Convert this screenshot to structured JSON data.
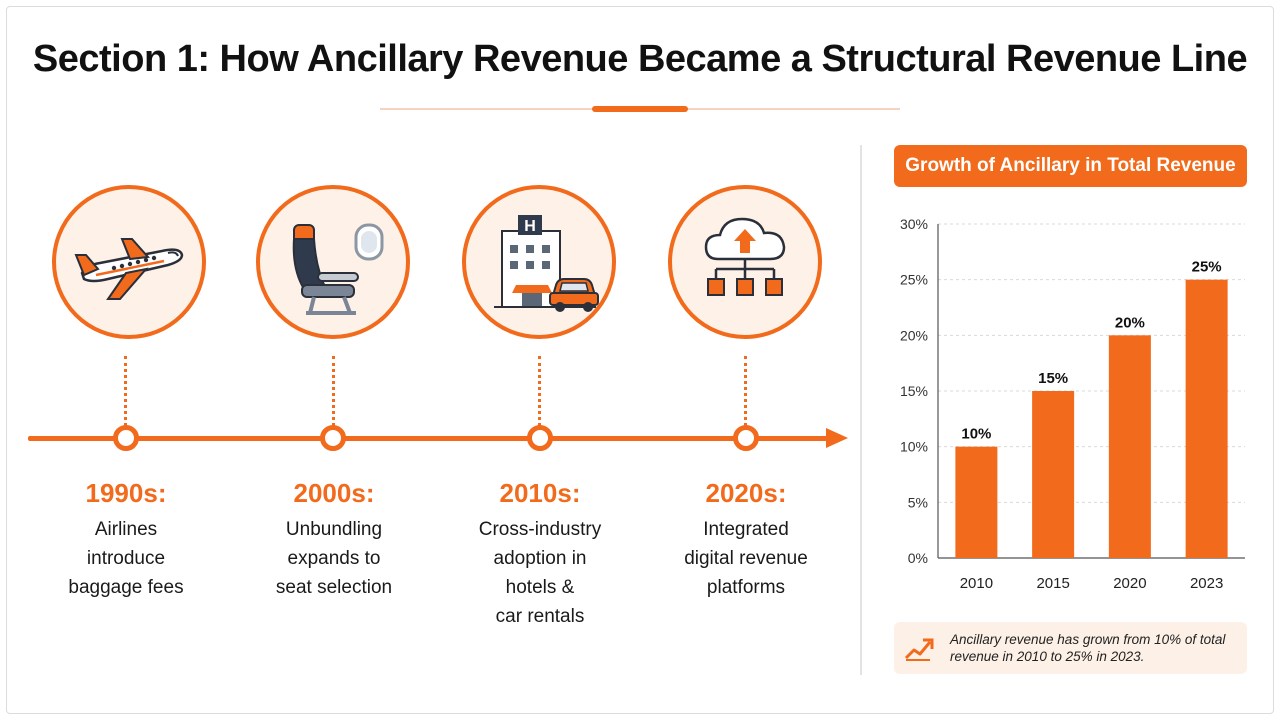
{
  "title": "Section 1: How Ancillary Revenue Became a Structural Revenue Line",
  "timeline": [
    {
      "year": "1990s:",
      "lines": [
        "Airlines",
        "introduce",
        "baggage fees"
      ],
      "icon": "airplane-icon"
    },
    {
      "year": "2000s:",
      "lines": [
        "Unbundling",
        "expands to",
        "seat selection"
      ],
      "icon": "airplane-seat-icon"
    },
    {
      "year": "2010s:",
      "lines": [
        "Cross-industry",
        "adoption in",
        "hotels &",
        "car rentals"
      ],
      "icon": "hotel-car-icon"
    },
    {
      "year": "2020s:",
      "lines": [
        "Integrated",
        "digital revenue",
        "platforms"
      ],
      "icon": "cloud-network-icon"
    }
  ],
  "hotel_sign": "H",
  "chart_data": {
    "type": "bar",
    "title": "Growth of Ancillary in Total Revenue",
    "categories": [
      "2010",
      "2015",
      "2020",
      "2023"
    ],
    "values": [
      10,
      15,
      20,
      25
    ],
    "data_labels": [
      "10%",
      "15%",
      "20%",
      "25%"
    ],
    "y_ticks": [
      "0%",
      "5%",
      "10%",
      "15%",
      "20%",
      "25%",
      "30%"
    ],
    "ylim": [
      0,
      30
    ],
    "grid": "horizontal dashed",
    "bar_color": "#f26a1b"
  },
  "note": {
    "text": "Ancillary revenue has grown from 10% of total revenue in 2010 to 25% in 2023.",
    "icon": "trend-up-icon"
  },
  "colors": {
    "accent": "#f26a1b",
    "accent_light": "#fdf1e8",
    "text": "#1a1a1a"
  }
}
